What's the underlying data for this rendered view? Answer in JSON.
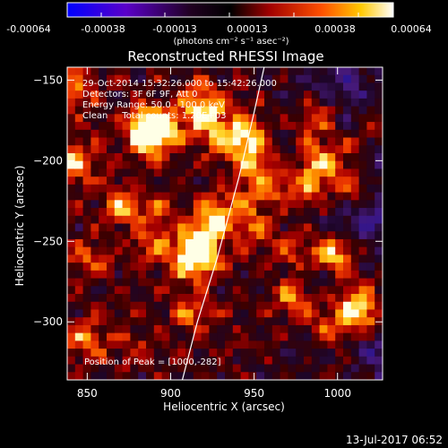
{
  "chart_data": {
    "type": "heatmap",
    "title": "Reconstructed RHESSI Image",
    "xlabel": "Heliocentric X (arcsec)",
    "ylabel": "Heliocentric Y (arcsec)",
    "xlim": [
      838,
      1027
    ],
    "ylim": [
      -336,
      -142
    ],
    "x_ticks": [
      850,
      900,
      950,
      1000
    ],
    "y_ticks": [
      -150,
      -200,
      -250,
      -300
    ],
    "x_tick_labels": [
      "850",
      "900",
      "950",
      "1000"
    ],
    "y_tick_labels": [
      "−150",
      "−200",
      "−250",
      "−300"
    ],
    "colorbar": {
      "range": [
        -0.00064,
        0.00064
      ],
      "tick_labels": [
        "-0.00064",
        "-0.00038",
        "-0.00013",
        "0.00013",
        "0.00038",
        "0.00064"
      ],
      "unit_text": "(photons cm⁻² s⁻¹ asec⁻²)",
      "colormap": "blue-purple-black-red-orange-yellow-white"
    },
    "annotations": [
      "29-Oct-2014 15:32:26.000 to 15:42:26.000",
      "Detectors: 3F 6F 9F, Att 0",
      "Energy Range: 50.0 - 100.0 keV",
      "Clean     Total counts: 1.20E+03"
    ],
    "peak_label": "Position of Peak = [1000,-282]",
    "limb_curve": {
      "x": [
        907,
        916,
        928,
        941,
        950,
        956
      ],
      "y": [
        -336,
        -300,
        -260,
        -210,
        -170,
        -142
      ]
    }
  },
  "footer": {
    "date": "13-Jul-2017 06:52"
  }
}
